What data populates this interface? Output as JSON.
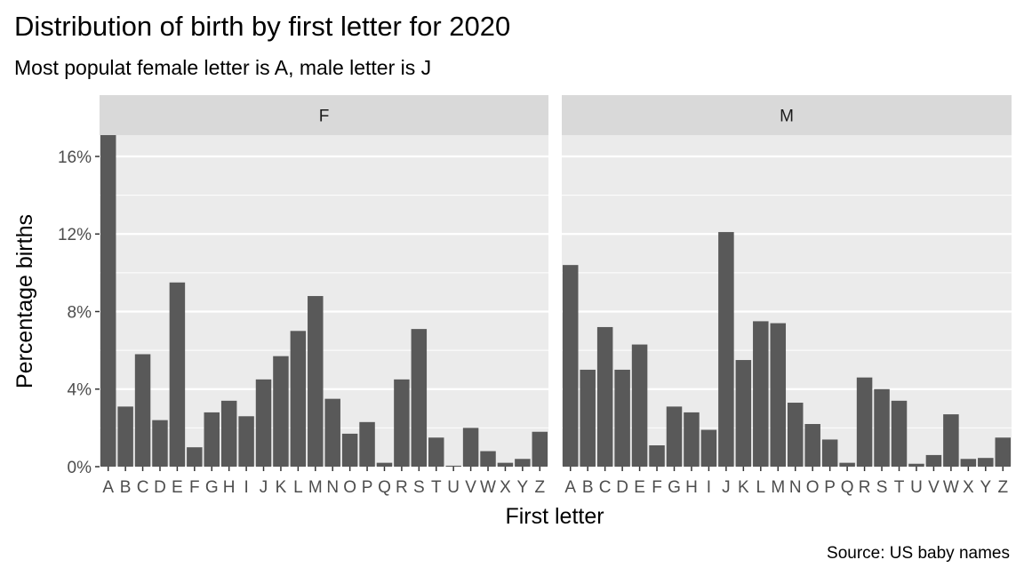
{
  "title": "Distribution of birth by first letter for 2020",
  "subtitle": "Most populat female letter is A, male letter is J",
  "caption": "Source: US baby names",
  "colors": {
    "panel_background": "#EBEBEB",
    "strip_background": "#D9D9D9",
    "grid": "#FFFFFF",
    "bar": "#595959",
    "tick_text": "#4D4D4D"
  },
  "chart_data": {
    "type": "bar",
    "title": "Distribution of birth by first letter for 2020",
    "subtitle": "Most populat female letter is A, male letter is J",
    "xlabel": "First letter",
    "ylabel": "Percentage births",
    "ylim": [
      0,
      17.1
    ],
    "yticks": [
      0,
      4,
      8,
      12,
      16
    ],
    "ytick_labels": [
      "0%",
      "4%",
      "8%",
      "12%",
      "16%"
    ],
    "grid": true,
    "facet_by": "sex",
    "categories": [
      "A",
      "B",
      "C",
      "D",
      "E",
      "F",
      "G",
      "H",
      "I",
      "J",
      "K",
      "L",
      "M",
      "N",
      "O",
      "P",
      "Q",
      "R",
      "S",
      "T",
      "U",
      "V",
      "W",
      "X",
      "Y",
      "Z"
    ],
    "panels": [
      {
        "name": "F",
        "values": [
          17.1,
          3.1,
          5.8,
          2.4,
          9.5,
          1.0,
          2.8,
          3.4,
          2.6,
          4.5,
          5.7,
          7.0,
          8.8,
          3.5,
          1.7,
          2.3,
          0.2,
          4.5,
          7.1,
          1.5,
          0.05,
          2.0,
          0.8,
          0.2,
          0.4,
          1.8
        ]
      },
      {
        "name": "M",
        "values": [
          10.4,
          5.0,
          7.2,
          5.0,
          6.3,
          1.1,
          3.1,
          2.8,
          1.9,
          12.1,
          5.5,
          7.5,
          7.4,
          3.3,
          2.2,
          1.4,
          0.2,
          4.6,
          4.0,
          3.4,
          0.15,
          0.6,
          2.7,
          0.4,
          0.45,
          1.5
        ]
      }
    ]
  }
}
